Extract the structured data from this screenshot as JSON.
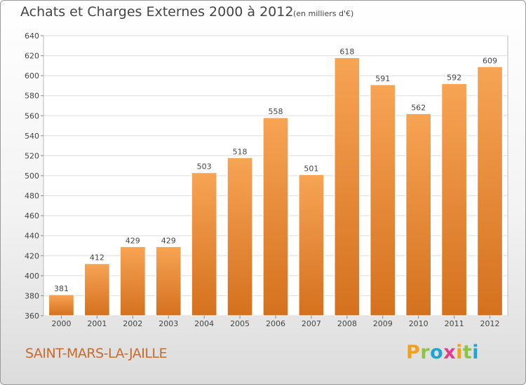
{
  "header": {
    "title": "Achats et Charges Externes 2000 à 2012",
    "subtitle": "(en milliers d'€)"
  },
  "footer": {
    "place": "SAINT-MARS-LA-JAILLE",
    "logo": "Proxiti"
  },
  "colors": {
    "bar_light": "#f7a455",
    "bar_dark": "#d4711e",
    "grid": "#dddddd",
    "text": "#444444",
    "place": "#c86a2a"
  },
  "chart_data": {
    "type": "bar",
    "title": "Achats et Charges Externes 2000 à 2012",
    "subtitle": "(en milliers d'€)",
    "categories": [
      "2000",
      "2001",
      "2002",
      "2003",
      "2004",
      "2005",
      "2006",
      "2007",
      "2008",
      "2009",
      "2010",
      "2011",
      "2012"
    ],
    "values": [
      381,
      412,
      429,
      429,
      503,
      518,
      558,
      501,
      618,
      591,
      562,
      592,
      609
    ],
    "ylim": [
      360,
      640
    ],
    "yticks": [
      360,
      380,
      400,
      420,
      440,
      460,
      480,
      500,
      520,
      540,
      560,
      580,
      600,
      620,
      640
    ],
    "grid": true,
    "data_labels": true
  }
}
